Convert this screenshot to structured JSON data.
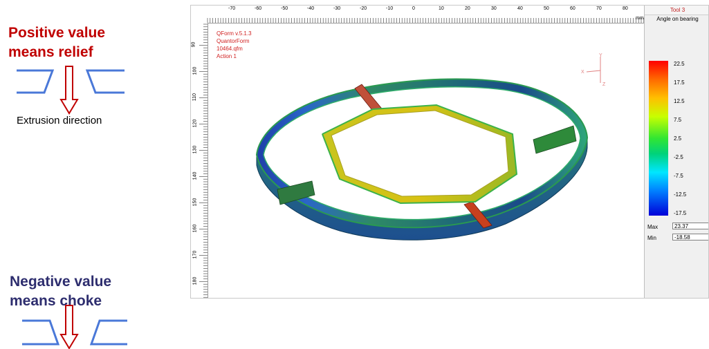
{
  "annotations": {
    "positive_line1": "Positive value",
    "positive_line2": "means relief",
    "extrusion_caption": "Extrusion direction",
    "negative_line1": "Negative value",
    "negative_line2": "means choke"
  },
  "viewer": {
    "info": [
      "QForm v.5.1.3",
      "QuantorForm",
      "10464.qfm",
      "Action 1"
    ],
    "ruler_units": "mm",
    "h_ruler_labels": [
      "-70",
      "-60",
      "-50",
      "-40",
      "-30",
      "-20",
      "-10",
      "0",
      "10",
      "20",
      "30",
      "40",
      "50",
      "60",
      "70",
      "80"
    ],
    "v_ruler_labels": [
      "90",
      "100",
      "110",
      "120",
      "130",
      "140",
      "150",
      "160",
      "170",
      "180"
    ],
    "axis_labels": {
      "x": "X",
      "y": "Y",
      "z": "Z"
    }
  },
  "legend": {
    "tab": "Tool 3",
    "title": "Angle on bearing",
    "ticks": [
      "22.5",
      "17.5",
      "12.5",
      "7.5",
      "2.5",
      "-2.5",
      "-7.5",
      "-12.5",
      "-17.5"
    ],
    "max_label": "Max",
    "max_value": "23.37",
    "min_label": "Min",
    "min_value": "-18.58"
  },
  "colors": {
    "relief": "#c00000",
    "choke": "#2d2d6e",
    "die": "#4a78d8",
    "arrow": "#c00000"
  }
}
